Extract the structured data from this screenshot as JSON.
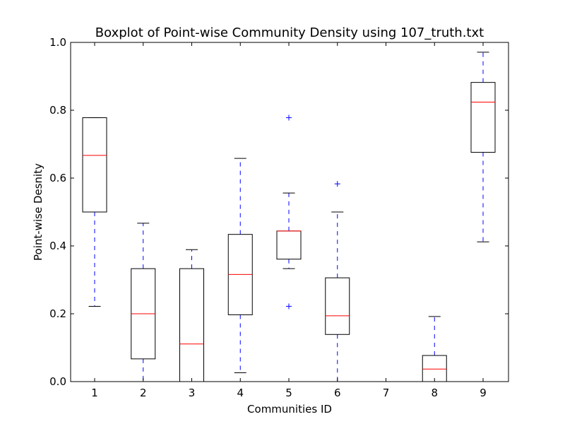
{
  "chart_data": {
    "type": "box",
    "title": "Boxplot of Point-wise Community Density using 107_truth.txt",
    "xlabel": "Communities ID",
    "ylabel": "Point-wise Desnity",
    "ylim": [
      0.0,
      1.0
    ],
    "yticks": [
      "0.0",
      "0.2",
      "0.4",
      "0.6",
      "0.8",
      "1.0"
    ],
    "categories": [
      "1",
      "2",
      "3",
      "4",
      "5",
      "6",
      "7",
      "8",
      "9"
    ],
    "boxes": [
      {
        "id": "1",
        "whisker_low": 0.222,
        "q1": 0.5,
        "median": 0.667,
        "q3": 0.778,
        "whisker_high": 0.778,
        "outliers": []
      },
      {
        "id": "2",
        "whisker_low": 0.0,
        "q1": 0.067,
        "median": 0.2,
        "q3": 0.333,
        "whisker_high": 0.467,
        "outliers": []
      },
      {
        "id": "3",
        "whisker_low": 0.0,
        "q1": 0.0,
        "median": 0.111,
        "q3": 0.333,
        "whisker_high": 0.389,
        "outliers": []
      },
      {
        "id": "4",
        "whisker_low": 0.026,
        "q1": 0.197,
        "median": 0.316,
        "q3": 0.434,
        "whisker_high": 0.658,
        "outliers": []
      },
      {
        "id": "5",
        "whisker_low": 0.333,
        "q1": 0.361,
        "median": 0.444,
        "q3": 0.444,
        "whisker_high": 0.556,
        "outliers": [
          0.778,
          0.222
        ]
      },
      {
        "id": "6",
        "whisker_low": 0.0,
        "q1": 0.139,
        "median": 0.194,
        "q3": 0.306,
        "whisker_high": 0.5,
        "outliers": [
          0.583
        ]
      },
      {
        "id": "7",
        "whisker_low": 0.0,
        "q1": 0.0,
        "median": 0.0,
        "q3": 0.0,
        "whisker_high": 0.0,
        "outliers": []
      },
      {
        "id": "8",
        "whisker_low": 0.0,
        "q1": 0.0,
        "median": 0.037,
        "q3": 0.077,
        "whisker_high": 0.192,
        "outliers": []
      },
      {
        "id": "9",
        "whisker_low": 0.412,
        "q1": 0.676,
        "median": 0.824,
        "q3": 0.882,
        "whisker_high": 0.971,
        "outliers": []
      }
    ],
    "colors": {
      "box": "#000000",
      "median": "#ff0000",
      "whisker": "#0000ff",
      "outlier": "#0000ff"
    },
    "grid": false
  }
}
